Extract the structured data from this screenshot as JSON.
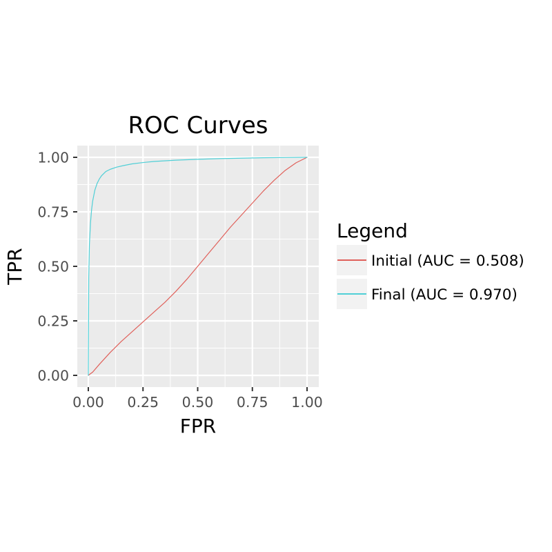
{
  "chart_data": {
    "type": "line",
    "title": "ROC Curves",
    "xlabel": "FPR",
    "ylabel": "TPR",
    "xlim": [
      0,
      1
    ],
    "ylim": [
      0,
      1
    ],
    "xticks": [
      0,
      0.25,
      0.5,
      0.75,
      1
    ],
    "yticks": [
      0,
      0.25,
      0.5,
      0.75,
      1
    ],
    "xtick_labels": [
      "0.00",
      "0.25",
      "0.50",
      "0.75",
      "1.00"
    ],
    "ytick_labels": [
      "0.00",
      "0.25",
      "0.50",
      "0.75",
      "1.00"
    ],
    "grid": true,
    "legend": {
      "title": "Legend",
      "position": "right"
    },
    "series": [
      {
        "name": "Initial (AUC = 0.508)",
        "color": "#e0605a",
        "x": [
          0.0,
          0.02,
          0.05,
          0.1,
          0.15,
          0.2,
          0.25,
          0.3,
          0.35,
          0.4,
          0.45,
          0.5,
          0.55,
          0.6,
          0.65,
          0.7,
          0.75,
          0.8,
          0.85,
          0.9,
          0.95,
          1.0
        ],
        "y": [
          0.0,
          0.015,
          0.05,
          0.105,
          0.155,
          0.2,
          0.245,
          0.29,
          0.335,
          0.385,
          0.44,
          0.5,
          0.56,
          0.62,
          0.68,
          0.735,
          0.79,
          0.845,
          0.895,
          0.94,
          0.975,
          1.0
        ]
      },
      {
        "name": "Final (AUC = 0.970)",
        "color": "#4fcfd6",
        "x": [
          0.0,
          0.002,
          0.005,
          0.01,
          0.015,
          0.02,
          0.03,
          0.04,
          0.05,
          0.06,
          0.08,
          0.1,
          0.13,
          0.16,
          0.2,
          0.25,
          0.3,
          0.4,
          0.5,
          0.6,
          0.7,
          0.8,
          0.9,
          1.0
        ],
        "y": [
          0.0,
          0.45,
          0.6,
          0.7,
          0.76,
          0.8,
          0.85,
          0.88,
          0.9,
          0.915,
          0.935,
          0.945,
          0.955,
          0.962,
          0.97,
          0.976,
          0.981,
          0.987,
          0.991,
          0.994,
          0.996,
          0.998,
          0.999,
          1.0
        ]
      }
    ]
  }
}
